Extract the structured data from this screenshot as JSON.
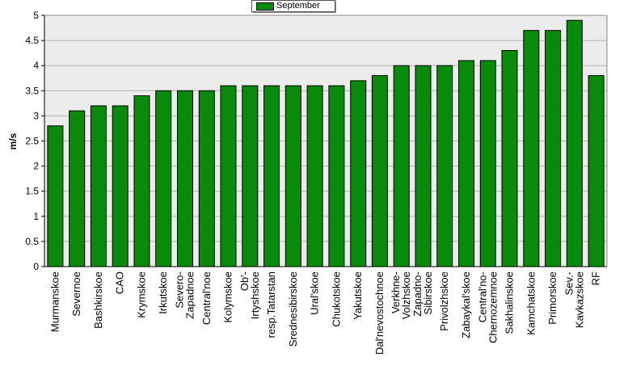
{
  "chart_data": {
    "type": "bar",
    "title": "",
    "xlabel": "",
    "ylabel": "m/s",
    "ylim": [
      0,
      5
    ],
    "yticks": [
      "0",
      "0.5",
      "1",
      "1.5",
      "2",
      "2.5",
      "3",
      "3.5",
      "4",
      "4.5",
      "5"
    ],
    "grid": true,
    "legend_position": "top-center",
    "bar_color": "#0a8a0a",
    "plot_background": "#ececec",
    "categories": [
      [
        "Murmanskoe"
      ],
      [
        "Severnoe"
      ],
      [
        "Bashkirskoe"
      ],
      [
        "CAO"
      ],
      [
        "Krymskoe"
      ],
      [
        "Irkutskoe"
      ],
      [
        "Severo-",
        "Zapadnoe"
      ],
      [
        "Central'noe"
      ],
      [
        "Kolymskoe"
      ],
      [
        "Ob'-",
        "Irtyshskoe"
      ],
      [
        "resp.Tatarstan"
      ],
      [
        "Srednesibirskoe"
      ],
      [
        "Ural'skoe"
      ],
      [
        "Chukotskoe"
      ],
      [
        "Yakutskoe"
      ],
      [
        "Dal'nevostochnoe"
      ],
      [
        "Verkhne-",
        "Volzhskoe"
      ],
      [
        "Zapadno-",
        "Sibirskoe"
      ],
      [
        "Privolzhskoe"
      ],
      [
        "Zabaykal'skoe"
      ],
      [
        "Central'no-",
        "Chernozemnoe"
      ],
      [
        "Sakhalinskoe"
      ],
      [
        "Kamchatskoe"
      ],
      [
        "Primorskoe"
      ],
      [
        "Sev.-",
        "Kavkazskoe"
      ],
      [
        "RF"
      ]
    ],
    "series": [
      {
        "name": "September",
        "values": [
          2.8,
          3.1,
          3.2,
          3.2,
          3.4,
          3.5,
          3.5,
          3.5,
          3.6,
          3.6,
          3.6,
          3.6,
          3.6,
          3.6,
          3.7,
          3.8,
          4.0,
          4.0,
          4.0,
          4.1,
          4.1,
          4.3,
          4.7,
          4.7,
          4.9,
          3.8
        ]
      }
    ]
  }
}
